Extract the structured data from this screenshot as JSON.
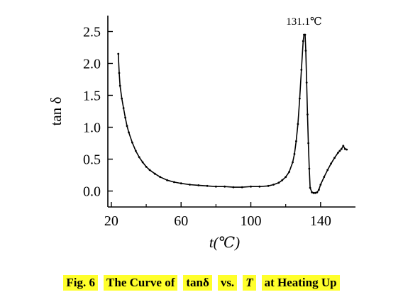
{
  "chart_data": {
    "type": "line",
    "xlabel": "t(℃)",
    "ylabel": "tan δ",
    "xlim": [
      18,
      160
    ],
    "ylim": [
      -0.25,
      2.75
    ],
    "x_ticks": [
      20,
      60,
      100,
      140
    ],
    "x_tick_labels": [
      "20",
      "60",
      "100",
      "140"
    ],
    "y_ticks": [
      0.0,
      0.5,
      1.0,
      1.5,
      2.0,
      2.5
    ],
    "y_tick_labels": [
      "0.0",
      "0.5",
      "1.0",
      "1.5",
      "2.0",
      "2.5"
    ],
    "annotation": "131.1℃",
    "grid": false,
    "line_color": "#000000",
    "series": [
      {
        "x": [
          24,
          24.5,
          25,
          26,
          27,
          28,
          29,
          30,
          32,
          34,
          36,
          38,
          40,
          42,
          45,
          48,
          52,
          56,
          60,
          65,
          70,
          75,
          80,
          85,
          90,
          95,
          100,
          105,
          110,
          113,
          116,
          118,
          120,
          122,
          124,
          125,
          126,
          127,
          128,
          129,
          130,
          130.5,
          131.1,
          131.5,
          132,
          132.5,
          133,
          133.5,
          134,
          135,
          136,
          137,
          138,
          139,
          140,
          142,
          144,
          146,
          148,
          150,
          151,
          152,
          153,
          154,
          155
        ],
        "y": [
          2.15,
          1.85,
          1.65,
          1.45,
          1.3,
          1.15,
          1.02,
          0.92,
          0.76,
          0.63,
          0.53,
          0.45,
          0.38,
          0.33,
          0.27,
          0.22,
          0.17,
          0.14,
          0.12,
          0.1,
          0.09,
          0.08,
          0.07,
          0.07,
          0.06,
          0.06,
          0.07,
          0.07,
          0.08,
          0.1,
          0.13,
          0.17,
          0.22,
          0.3,
          0.45,
          0.58,
          0.78,
          1.05,
          1.45,
          1.9,
          2.35,
          2.45,
          2.45,
          2.2,
          1.7,
          1.2,
          0.75,
          0.35,
          0.05,
          -0.02,
          -0.03,
          -0.03,
          -0.02,
          0.02,
          0.1,
          0.22,
          0.33,
          0.43,
          0.52,
          0.6,
          0.63,
          0.66,
          0.71,
          0.66,
          0.65
        ]
      }
    ]
  },
  "caption": {
    "label": "Fig. 6",
    "part1": "The Curve of",
    "tan_text": "tanδ",
    "vs_text": "vs.",
    "T_var": "T",
    "part2": "at Heating Up"
  }
}
